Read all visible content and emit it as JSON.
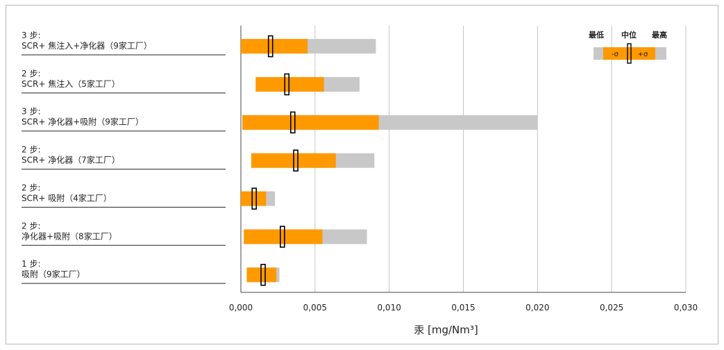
{
  "chart_data": {
    "type": "bar",
    "subtype": "range-box",
    "xlabel": "汞 [mg/Nm³]",
    "xlim": [
      0,
      0.03
    ],
    "x_ticks": [
      "0,000",
      "0,005",
      "0,010",
      "0,015",
      "0,020",
      "0,025",
      "0,030"
    ],
    "x_tick_values": [
      0,
      0.005,
      0.01,
      0.015,
      0.02,
      0.025,
      0.03
    ],
    "grid": true,
    "legend": {
      "placement": "top-right",
      "labels": [
        "最低",
        "中位",
        "最高"
      ],
      "minus_sigma": "-σ",
      "plus_sigma": "+σ"
    },
    "colors": {
      "range": "#c8c8c8",
      "sigma": "#ff9900",
      "median": "#000000"
    },
    "categories": [
      {
        "step": "3 步:",
        "name": "SCR+ 焦注入+净化器（9家工厂）",
        "min": 0.0,
        "sigma_low": 0.0,
        "median": 0.002,
        "sigma_high": 0.0045,
        "max": 0.0091
      },
      {
        "step": "2 步:",
        "name": "SCR+ 焦注入（5家工厂）",
        "min": 0.001,
        "sigma_low": 0.001,
        "median": 0.0031,
        "sigma_high": 0.0056,
        "max": 0.008
      },
      {
        "step": "3 步:",
        "name": "SCR+ 净化器+吸附（9家工厂）",
        "min": 0.0001,
        "sigma_low": 0.0001,
        "median": 0.0035,
        "sigma_high": 0.0093,
        "max": 0.02
      },
      {
        "step": "2 步:",
        "name": "SCR+ 净化器（7家工厂）",
        "min": 0.0007,
        "sigma_low": 0.0007,
        "median": 0.0037,
        "sigma_high": 0.0064,
        "max": 0.009
      },
      {
        "step": "2 步:",
        "name": "SCR+ 吸附（4家工厂）",
        "min": 0.0,
        "sigma_low": 0.0,
        "median": 0.0009,
        "sigma_high": 0.0017,
        "max": 0.0023
      },
      {
        "step": "2 步:",
        "name": "净化器+吸附（8家工厂）",
        "min": 0.0002,
        "sigma_low": 0.0002,
        "median": 0.0028,
        "sigma_high": 0.0055,
        "max": 0.0085
      },
      {
        "step": "1 步:",
        "name": "吸附（9家工厂）",
        "min": 0.0004,
        "sigma_low": 0.0004,
        "median": 0.0015,
        "sigma_high": 0.0024,
        "max": 0.0026
      }
    ]
  }
}
